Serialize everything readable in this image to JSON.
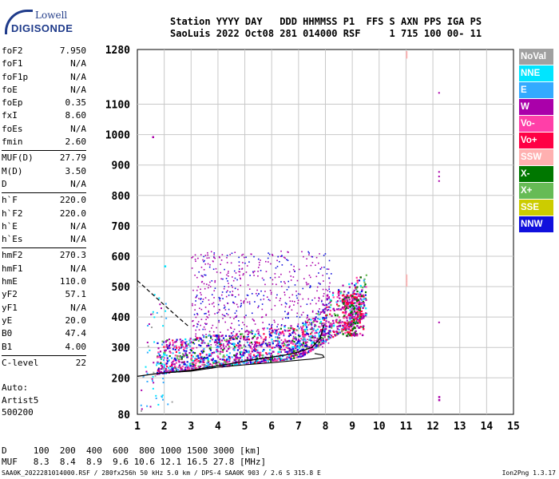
{
  "logo": {
    "top": "Lowell",
    "bottom": "DIGISONDE"
  },
  "header": {
    "line1": "Station YYYY DAY   DDD HHMMSS P1  FFS S AXN PPS IGA PS",
    "line2": "SaoLuis 2022 Oct08 281 014000 RSF     1 715 100 00- 11"
  },
  "params": [
    {
      "name": "foF2",
      "value": "7.950"
    },
    {
      "name": "foF1",
      "value": "N/A"
    },
    {
      "name": "foF1p",
      "value": "N/A"
    },
    {
      "name": "foE",
      "value": "N/A"
    },
    {
      "name": "foEp",
      "value": "0.35"
    },
    {
      "name": "fxI",
      "value": "8.60"
    },
    {
      "name": "foEs",
      "value": "N/A"
    },
    {
      "name": "fmin",
      "value": "2.60"
    },
    {
      "sep": true
    },
    {
      "name": "MUF(D)",
      "value": "27.79"
    },
    {
      "name": "M(D)",
      "value": "3.50"
    },
    {
      "name": "D",
      "value": "N/A"
    },
    {
      "sep": true
    },
    {
      "name": "h`F",
      "value": "220.0"
    },
    {
      "name": "h`F2",
      "value": "220.0"
    },
    {
      "name": "h`E",
      "value": "N/A"
    },
    {
      "name": "h`Es",
      "value": "N/A"
    },
    {
      "sep": true
    },
    {
      "name": "hmF2",
      "value": "270.3"
    },
    {
      "name": "hmF1",
      "value": "N/A"
    },
    {
      "name": "hmE",
      "value": "110.0"
    },
    {
      "name": "yF2",
      "value": "57.1"
    },
    {
      "name": "yF1",
      "value": "N/A"
    },
    {
      "name": "yE",
      "value": "20.0"
    },
    {
      "name": "B0",
      "value": "47.4"
    },
    {
      "name": "B1",
      "value": "4.00"
    },
    {
      "sep": true
    },
    {
      "name": "C-level",
      "value": "22"
    }
  ],
  "auto": {
    "line1": "Auto:",
    "line2": "Artist5",
    "line3": "500200"
  },
  "legend": [
    {
      "label": "NoVal",
      "color": "#a0a0a0"
    },
    {
      "label": "NNE",
      "color": "#00e5ff"
    },
    {
      "label": "E",
      "color": "#33aaff"
    },
    {
      "label": "W",
      "color": "#aa00aa"
    },
    {
      "label": "Vo-",
      "color": "#ff3fa8"
    },
    {
      "label": "Vo+",
      "color": "#ff0044"
    },
    {
      "label": "SSW",
      "color": "#ffb0b0"
    },
    {
      "label": "X-",
      "color": "#007700"
    },
    {
      "label": "X+",
      "color": "#66bb55"
    },
    {
      "label": "SSE",
      "color": "#cccc00"
    },
    {
      "label": "NNW",
      "color": "#1010dd"
    }
  ],
  "footer": {
    "d_line": "D     100  200  400  600  800 1000 1500 3000 [km]",
    "muf_line": "MUF   8.3  8.4  8.9  9.6 10.6 12.1 16.5 27.8 [MHz]",
    "filename": "SAA0K_2022281014000.RSF / 280fx256h 50 kHz 5.0 km / DPS-4 SAA0K 903 / 2.6 S 315.8 E",
    "version": "Ion2Png 1.3.17"
  },
  "chart_data": {
    "type": "scatter",
    "xlabel": "",
    "ylabel": "",
    "xlim": [
      1,
      15
    ],
    "ylim": [
      80,
      1280
    ],
    "xticks": [
      1,
      2,
      3,
      4,
      5,
      6,
      7,
      8,
      9,
      10,
      11,
      12,
      13,
      14,
      15
    ],
    "yticks": [
      80,
      200,
      300,
      400,
      500,
      600,
      700,
      800,
      900,
      1000,
      1100,
      1280
    ],
    "grid": true,
    "notes": "Colored echo dots (legend colors) concentrated 1.6-9.5 MHz, 200-650 km; solid black model trace (O-mode/X-mode) and dashed profile line.",
    "trace_solid": {
      "x": [
        1.0,
        1.8,
        2.5,
        3.0,
        3.5,
        4.0,
        4.5,
        5.0,
        5.5,
        6.0,
        6.5,
        7.0,
        7.5,
        7.8,
        7.95
      ],
      "y": [
        205,
        215,
        220,
        225,
        232,
        240,
        247,
        255,
        262,
        268,
        275,
        285,
        300,
        330,
        375
      ]
    },
    "trace_x": {
      "x": [
        2.2,
        3.0,
        4.0,
        5.0,
        6.0,
        7.0,
        7.5,
        7.8,
        7.95,
        7.9,
        7.6
      ],
      "y": [
        218,
        222,
        235,
        243,
        250,
        258,
        262,
        265,
        268,
        275,
        280
      ]
    },
    "trace_dashed": {
      "x": [
        1.0,
        1.5,
        2.0,
        2.5,
        2.9
      ],
      "y": [
        520,
        480,
        440,
        400,
        370
      ]
    }
  }
}
